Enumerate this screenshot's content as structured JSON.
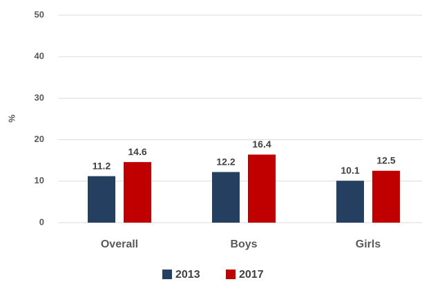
{
  "chart_data": {
    "type": "bar",
    "y_label": "%",
    "categories": [
      "Overall",
      "Boys",
      "Girls"
    ],
    "series": [
      {
        "name": "2013",
        "color": "#243f60",
        "values": [
          11.2,
          12.2,
          10.1
        ]
      },
      {
        "name": "2017",
        "color": "#c00000",
        "values": [
          14.6,
          16.4,
          12.5
        ]
      }
    ],
    "ylim": [
      0,
      50
    ],
    "yticks": [
      0,
      10,
      20,
      30,
      40,
      50
    ],
    "grid": true,
    "legend": "bottom"
  }
}
